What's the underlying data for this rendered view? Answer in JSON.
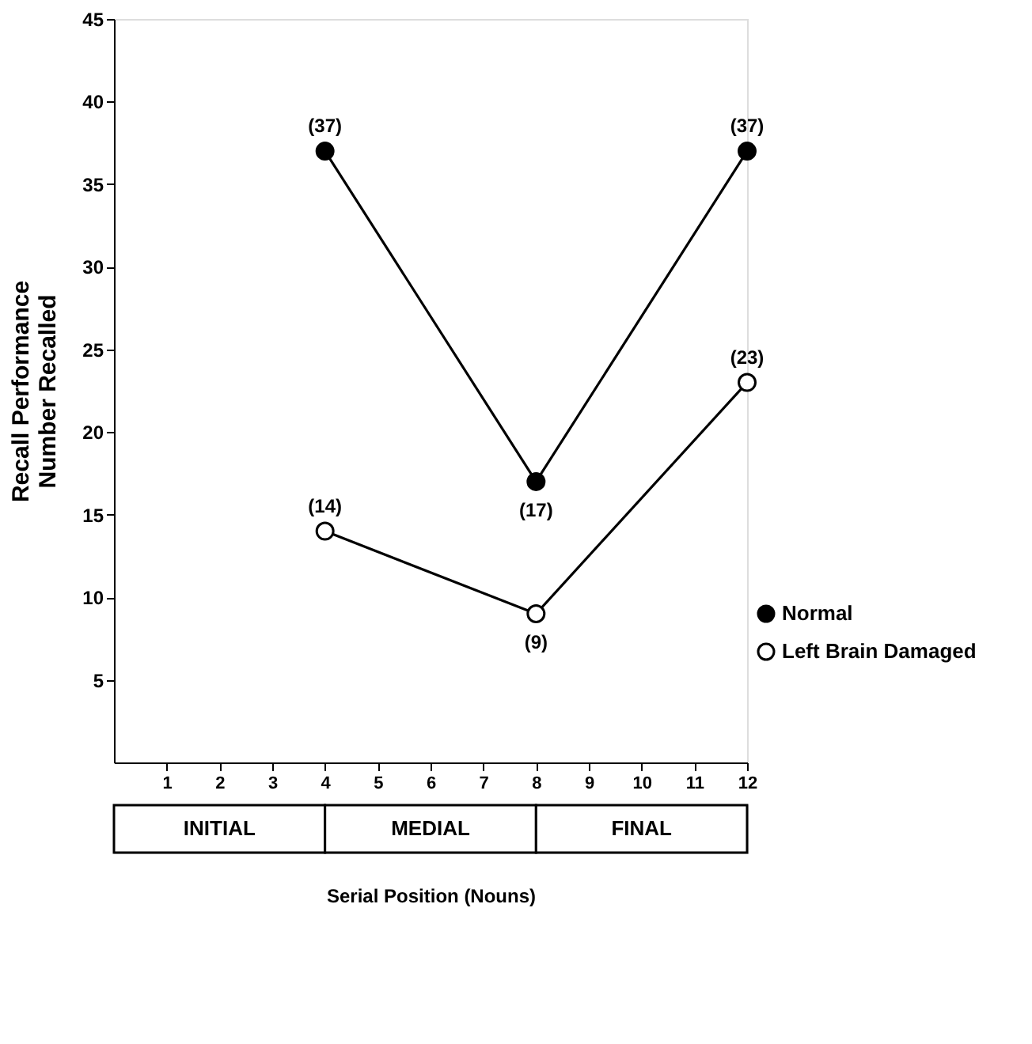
{
  "chart_data": {
    "type": "line",
    "xlabel": "Serial Position (Nouns)",
    "ylabel": "Recall Performance\nNumber Recalled",
    "xlim": [
      0,
      12
    ],
    "xticks": [
      1,
      2,
      3,
      4,
      5,
      6,
      7,
      8,
      9,
      10,
      11,
      12
    ],
    "ylim": [
      0,
      45
    ],
    "yticks": [
      5,
      10,
      15,
      20,
      25,
      30,
      35,
      40,
      45
    ],
    "series": [
      {
        "name": "Normal",
        "color": "#000000",
        "x": [
          4,
          8,
          12
        ],
        "values": [
          37,
          17,
          37
        ],
        "value_labels": [
          "(37)",
          "(17)",
          "(37)"
        ]
      },
      {
        "name": "Left Brain Damaged",
        "color": "#000000",
        "x": [
          4,
          8,
          12
        ],
        "values": [
          14,
          9,
          23
        ],
        "value_labels": [
          "(14)",
          "(9)",
          "(23)"
        ]
      }
    ],
    "annotations": [
      "INITIAL",
      "MEDIAL",
      "FINAL"
    ],
    "marker": "circle",
    "line_style": "solid",
    "legend": "right",
    "grid": false
  }
}
